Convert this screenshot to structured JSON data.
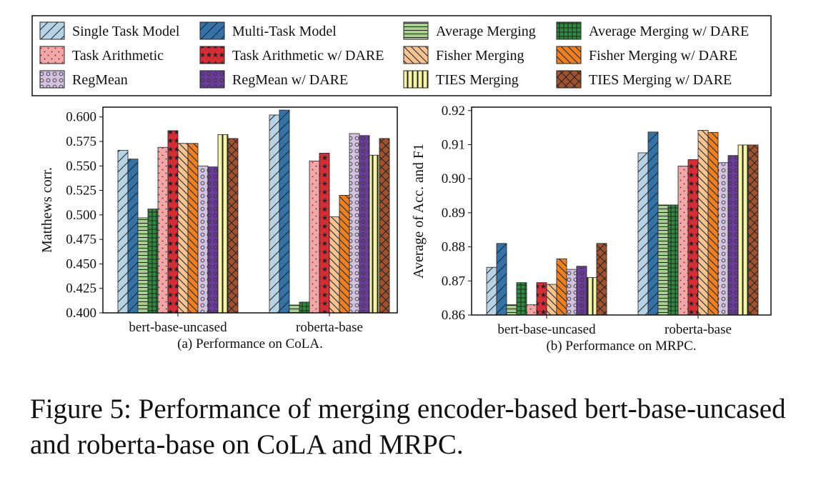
{
  "caption": "Figure 5: Performance of merging encoder-based bert-base-uncased and roberta-base on CoLA and MRPC.",
  "legend": [
    {
      "name": "Single Task Model",
      "color": "#b9d3e6",
      "pattern": "diag-back"
    },
    {
      "name": "Multi-Task Model",
      "color": "#3572a5",
      "pattern": "diag-back"
    },
    {
      "name": "Average Merging",
      "color": "#a8d08d",
      "pattern": "horiz"
    },
    {
      "name": "Average Merging w/ DARE",
      "color": "#2e8b3e",
      "pattern": "grid"
    },
    {
      "name": "Task Arithmetic",
      "color": "#f4a6a6",
      "pattern": "dots"
    },
    {
      "name": "Task Arithmetic w/ DARE",
      "color": "#d62c36",
      "pattern": "stars"
    },
    {
      "name": "Fisher Merging",
      "color": "#f7c48f",
      "pattern": "diag-fwd"
    },
    {
      "name": "Fisher Merging w/ DARE",
      "color": "#f07f1c",
      "pattern": "diag-fwd"
    },
    {
      "name": "RegMean",
      "color": "#d3c2e0",
      "pattern": "circles"
    },
    {
      "name": "RegMean w/ DARE",
      "color": "#6a3d9a",
      "pattern": "circles"
    },
    {
      "name": "TIES Merging",
      "color": "#f5f5a3",
      "pattern": "vert"
    },
    {
      "name": "TIES Merging w/ DARE",
      "color": "#a0522d",
      "pattern": "cross"
    }
  ],
  "chart_data": [
    {
      "type": "bar",
      "title": "(a) Performance on CoLA.",
      "xlabel": "",
      "ylabel": "Matthews corr.",
      "ylim": [
        0.4,
        0.61
      ],
      "yticks": [
        "0.400",
        "0.425",
        "0.450",
        "0.475",
        "0.500",
        "0.525",
        "0.550",
        "0.575",
        "0.600"
      ],
      "categories": [
        "bert-base-uncased",
        "roberta-base"
      ],
      "series": [
        {
          "name": "Single Task Model",
          "values": [
            0.566,
            0.602
          ]
        },
        {
          "name": "Multi-Task Model",
          "values": [
            0.557,
            0.607
          ]
        },
        {
          "name": "Average Merging",
          "values": [
            0.497,
            0.408
          ]
        },
        {
          "name": "Average Merging w/ DARE",
          "values": [
            0.506,
            0.411
          ]
        },
        {
          "name": "Task Arithmetic",
          "values": [
            0.569,
            0.555
          ]
        },
        {
          "name": "Task Arithmetic w/ DARE",
          "values": [
            0.586,
            0.563
          ]
        },
        {
          "name": "Fisher Merging",
          "values": [
            0.573,
            0.498
          ]
        },
        {
          "name": "Fisher Merging w/ DARE",
          "values": [
            0.573,
            0.52
          ]
        },
        {
          "name": "RegMean",
          "values": [
            0.55,
            0.583
          ]
        },
        {
          "name": "RegMean w/ DARE",
          "values": [
            0.549,
            0.581
          ]
        },
        {
          "name": "TIES Merging",
          "values": [
            0.582,
            0.561
          ]
        },
        {
          "name": "TIES Merging w/ DARE",
          "values": [
            0.578,
            0.578
          ]
        }
      ]
    },
    {
      "type": "bar",
      "title": "(b) Performance on MRPC.",
      "xlabel": "",
      "ylabel": "Average of Acc. and F1",
      "ylim": [
        0.86,
        0.921
      ],
      "yticks": [
        "0.86",
        "0.87",
        "0.88",
        "0.89",
        "0.90",
        "0.91",
        "0.92"
      ],
      "categories": [
        "bert-base-uncased",
        "roberta-base"
      ],
      "series": [
        {
          "name": "Single Task Model",
          "values": [
            0.874,
            0.9076
          ]
        },
        {
          "name": "Multi-Task Model",
          "values": [
            0.881,
            0.9137
          ]
        },
        {
          "name": "Average Merging",
          "values": [
            0.863,
            0.8923
          ]
        },
        {
          "name": "Average Merging w/ DARE",
          "values": [
            0.8695,
            0.8923
          ]
        },
        {
          "name": "Task Arithmetic",
          "values": [
            0.863,
            0.9037
          ]
        },
        {
          "name": "Task Arithmetic w/ DARE",
          "values": [
            0.8695,
            0.9056
          ]
        },
        {
          "name": "Fisher Merging",
          "values": [
            0.869,
            0.9142
          ]
        },
        {
          "name": "Fisher Merging w/ DARE",
          "values": [
            0.8765,
            0.9136
          ]
        },
        {
          "name": "RegMean",
          "values": [
            0.8734,
            0.9047
          ]
        },
        {
          "name": "RegMean w/ DARE",
          "values": [
            0.8743,
            0.9068
          ]
        },
        {
          "name": "TIES Merging",
          "values": [
            0.871,
            0.9099
          ]
        },
        {
          "name": "TIES Merging w/ DARE",
          "values": [
            0.881,
            0.9099
          ]
        }
      ]
    }
  ]
}
